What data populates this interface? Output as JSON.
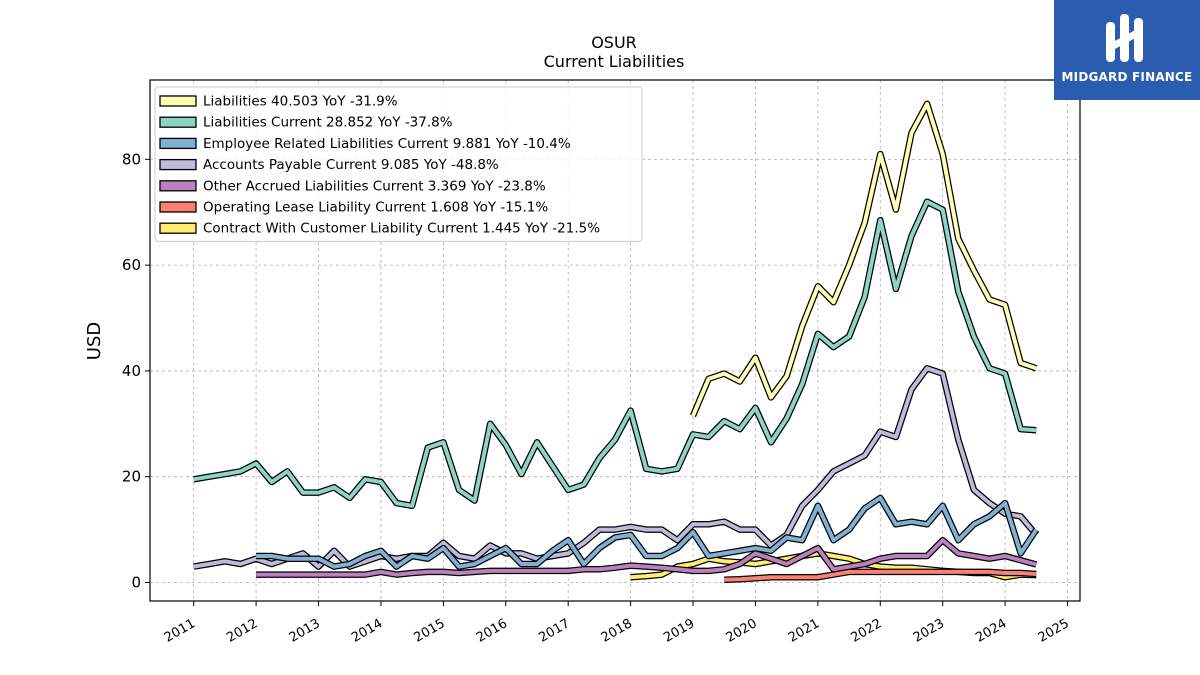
{
  "chart_data": {
    "type": "line",
    "title": "OSUR",
    "subtitle": "Current  Liabilities",
    "ylabel": "USD",
    "xlabel": "",
    "xlim": [
      2010.3,
      2025.2
    ],
    "ylim": [
      -3.5,
      95
    ],
    "yticks": [
      0,
      20,
      40,
      60,
      80
    ],
    "xticks": [
      "2011",
      "2012",
      "2013",
      "2014",
      "2015",
      "2016",
      "2017",
      "2018",
      "2019",
      "2020",
      "2021",
      "2022",
      "2023",
      "2024",
      "2025"
    ],
    "grid": true,
    "legend_position": "top-left",
    "series": [
      {
        "name": "Liabilities  40.503 YoY -31.9%",
        "color": "#ffffb3",
        "x": [
          2019.0,
          2019.25,
          2019.5,
          2019.75,
          2020.0,
          2020.25,
          2020.5,
          2020.75,
          2021.0,
          2021.25,
          2021.5,
          2021.75,
          2022.0,
          2022.25,
          2022.5,
          2022.75,
          2023.0,
          2023.25,
          2023.5,
          2023.75,
          2024.0,
          2024.25,
          2024.5
        ],
        "y": [
          31.5,
          38.5,
          39.5,
          38,
          42.5,
          35,
          39,
          48.5,
          56,
          53,
          60,
          68,
          81,
          70.5,
          85,
          90.5,
          81,
          65,
          59,
          53.5,
          52.5,
          41.5,
          40.5
        ]
      },
      {
        "name": "Liabilities Current  28.852 YoY -37.8%",
        "color": "#8dd3c7",
        "x": [
          2011.0,
          2011.25,
          2011.5,
          2011.75,
          2012.0,
          2012.25,
          2012.5,
          2012.75,
          2013.0,
          2013.25,
          2013.5,
          2013.75,
          2014.0,
          2014.25,
          2014.5,
          2014.75,
          2015.0,
          2015.25,
          2015.5,
          2015.75,
          2016.0,
          2016.25,
          2016.5,
          2016.75,
          2017.0,
          2017.25,
          2017.5,
          2017.75,
          2018.0,
          2018.25,
          2018.5,
          2018.75,
          2019.0,
          2019.25,
          2019.5,
          2019.75,
          2020.0,
          2020.25,
          2020.5,
          2020.75,
          2021.0,
          2021.25,
          2021.5,
          2021.75,
          2022.0,
          2022.25,
          2022.5,
          2022.75,
          2023.0,
          2023.25,
          2023.5,
          2023.75,
          2024.0,
          2024.25,
          2024.5
        ],
        "y": [
          19.5,
          20,
          20.5,
          21,
          22.5,
          19,
          21,
          17,
          17,
          18,
          16,
          19.5,
          19,
          15,
          14.5,
          25.5,
          26.5,
          17.5,
          15.5,
          30,
          26,
          20.5,
          26.5,
          22,
          17.5,
          18.5,
          23.5,
          27,
          32.5,
          21.5,
          21,
          21.5,
          28,
          27.5,
          30.5,
          29,
          33,
          26.5,
          31,
          37.5,
          47,
          44.5,
          46.5,
          54,
          68.5,
          55.5,
          65.5,
          72,
          70.5,
          55,
          46.5,
          40.5,
          39.5,
          29,
          28.8
        ]
      },
      {
        "name": "Employee Related Liabilities Current  9.881 YoY -10.4%",
        "color": "#80b1d3",
        "x": [
          2012.0,
          2012.25,
          2012.5,
          2012.75,
          2013.0,
          2013.25,
          2013.5,
          2013.75,
          2014.0,
          2014.25,
          2014.5,
          2014.75,
          2015.0,
          2015.25,
          2015.5,
          2015.75,
          2016.0,
          2016.25,
          2016.5,
          2016.75,
          2017.0,
          2017.25,
          2017.5,
          2017.75,
          2018.0,
          2018.25,
          2018.5,
          2018.75,
          2019.0,
          2019.25,
          2019.5,
          2019.75,
          2020.0,
          2020.25,
          2020.5,
          2020.75,
          2021.0,
          2021.25,
          2021.5,
          2021.75,
          2022.0,
          2022.25,
          2022.5,
          2022.75,
          2023.0,
          2023.25,
          2023.5,
          2023.75,
          2024.0,
          2024.25,
          2024.5
        ],
        "y": [
          5,
          5,
          4.5,
          4.5,
          4.5,
          3,
          3.5,
          5,
          6,
          3,
          5,
          4.5,
          6.5,
          3,
          3.5,
          5,
          6.5,
          3.5,
          3.5,
          6,
          8,
          3.5,
          6.5,
          8.5,
          9,
          5,
          5,
          6.5,
          9.5,
          5,
          5.5,
          6,
          6.5,
          6,
          8.5,
          8,
          14.5,
          8,
          10,
          14,
          16,
          11,
          11.5,
          11,
          14.5,
          8,
          11,
          12.5,
          15,
          5.5,
          10
        ]
      },
      {
        "name": "Accounts Payable Current  9.085 YoY -48.8%",
        "color": "#bebada",
        "x": [
          2011.0,
          2011.25,
          2011.5,
          2011.75,
          2012.0,
          2012.25,
          2012.5,
          2012.75,
          2013.0,
          2013.25,
          2013.5,
          2013.75,
          2014.0,
          2014.25,
          2014.5,
          2014.75,
          2015.0,
          2015.25,
          2015.5,
          2015.75,
          2016.0,
          2016.25,
          2016.5,
          2016.75,
          2017.0,
          2017.25,
          2017.5,
          2017.75,
          2018.0,
          2018.25,
          2018.5,
          2018.75,
          2019.0,
          2019.25,
          2019.5,
          2019.75,
          2020.0,
          2020.25,
          2020.5,
          2020.75,
          2021.0,
          2021.25,
          2021.5,
          2021.75,
          2022.0,
          2022.25,
          2022.5,
          2022.75,
          2023.0,
          2023.25,
          2023.5,
          2023.75,
          2024.0,
          2024.25,
          2024.5
        ],
        "y": [
          3,
          3.5,
          4,
          3.5,
          4.5,
          3.5,
          4.5,
          5.5,
          3,
          6,
          3,
          4,
          5,
          4.5,
          5,
          5,
          7.5,
          5,
          4.5,
          7,
          5.5,
          5.5,
          4.5,
          5,
          5.5,
          7.5,
          10,
          10,
          10.5,
          10,
          10,
          8,
          11,
          11,
          11.5,
          10,
          10,
          7,
          9,
          14.5,
          17.5,
          21,
          22.5,
          24,
          28.5,
          27.5,
          36.5,
          40.5,
          39.5,
          27,
          17.5,
          15,
          13,
          12.5,
          9
        ]
      },
      {
        "name": "Other Accrued Liabilities Current  3.369 YoY -23.8%",
        "color": "#bc80bd",
        "x": [
          2012.0,
          2012.25,
          2012.5,
          2012.75,
          2013.0,
          2013.25,
          2013.5,
          2013.75,
          2014.0,
          2014.25,
          2014.5,
          2014.75,
          2015.0,
          2015.25,
          2015.5,
          2015.75,
          2016.0,
          2016.25,
          2016.5,
          2016.75,
          2017.0,
          2017.25,
          2017.5,
          2017.75,
          2018.0,
          2018.25,
          2018.5,
          2018.75,
          2019.0,
          2019.25,
          2019.5,
          2019.75,
          2020.0,
          2020.25,
          2020.5,
          2020.75,
          2021.0,
          2021.25,
          2021.5,
          2021.75,
          2022.0,
          2022.25,
          2022.5,
          2022.75,
          2023.0,
          2023.25,
          2023.5,
          2023.75,
          2024.0,
          2024.25,
          2024.5
        ],
        "y": [
          1.5,
          1.5,
          1.5,
          1.5,
          1.5,
          1.5,
          1.5,
          1.5,
          2,
          1.5,
          1.8,
          2,
          2,
          1.8,
          2,
          2.2,
          2.2,
          2.2,
          2.2,
          2.2,
          2.2,
          2.5,
          2.5,
          2.8,
          3.2,
          3,
          2.8,
          2.5,
          2.2,
          2.2,
          2.5,
          3.5,
          5.5,
          4.5,
          3.5,
          5,
          6.5,
          2.5,
          3,
          3.5,
          4.5,
          5,
          5,
          5,
          8,
          5.5,
          5,
          4.5,
          5,
          4.2,
          3.4
        ]
      },
      {
        "name": "Operating Lease Liability Current  1.608 YoY -15.1%",
        "color": "#fb8072",
        "x": [
          2019.5,
          2019.75,
          2020.0,
          2020.25,
          2020.5,
          2020.75,
          2021.0,
          2021.25,
          2021.5,
          2021.75,
          2022.0,
          2022.25,
          2022.5,
          2022.75,
          2023.0,
          2023.25,
          2023.5,
          2023.75,
          2024.0,
          2024.25,
          2024.5
        ],
        "y": [
          0.5,
          0.6,
          0.8,
          1,
          1,
          1,
          1,
          1.5,
          2,
          2,
          2,
          2,
          2,
          2,
          2,
          2,
          2,
          2,
          1.8,
          1.8,
          1.6
        ]
      },
      {
        "name": "Contract With Customer Liability Current  1.445 YoY -21.5%",
        "color": "#ffed6f",
        "x": [
          2018.0,
          2018.25,
          2018.5,
          2018.75,
          2019.0,
          2019.25,
          2019.5,
          2019.75,
          2020.0,
          2020.25,
          2020.5,
          2020.75,
          2021.0,
          2021.25,
          2021.5,
          2021.75,
          2022.0,
          2022.25,
          2022.5,
          2022.75,
          2023.0,
          2023.25,
          2023.5,
          2023.75,
          2024.0,
          2024.25,
          2024.5
        ],
        "y": [
          1,
          1.2,
          1.5,
          3,
          3.5,
          4.5,
          4,
          3.8,
          3.5,
          4,
          4.5,
          5,
          5.5,
          5,
          4.5,
          3.5,
          3,
          2.8,
          2.8,
          2.5,
          2.2,
          2,
          1.8,
          1.8,
          1,
          1.5,
          1.4
        ]
      }
    ]
  },
  "brand": {
    "name": "MIDGARD FINANCE",
    "color": "#2a5db0"
  }
}
